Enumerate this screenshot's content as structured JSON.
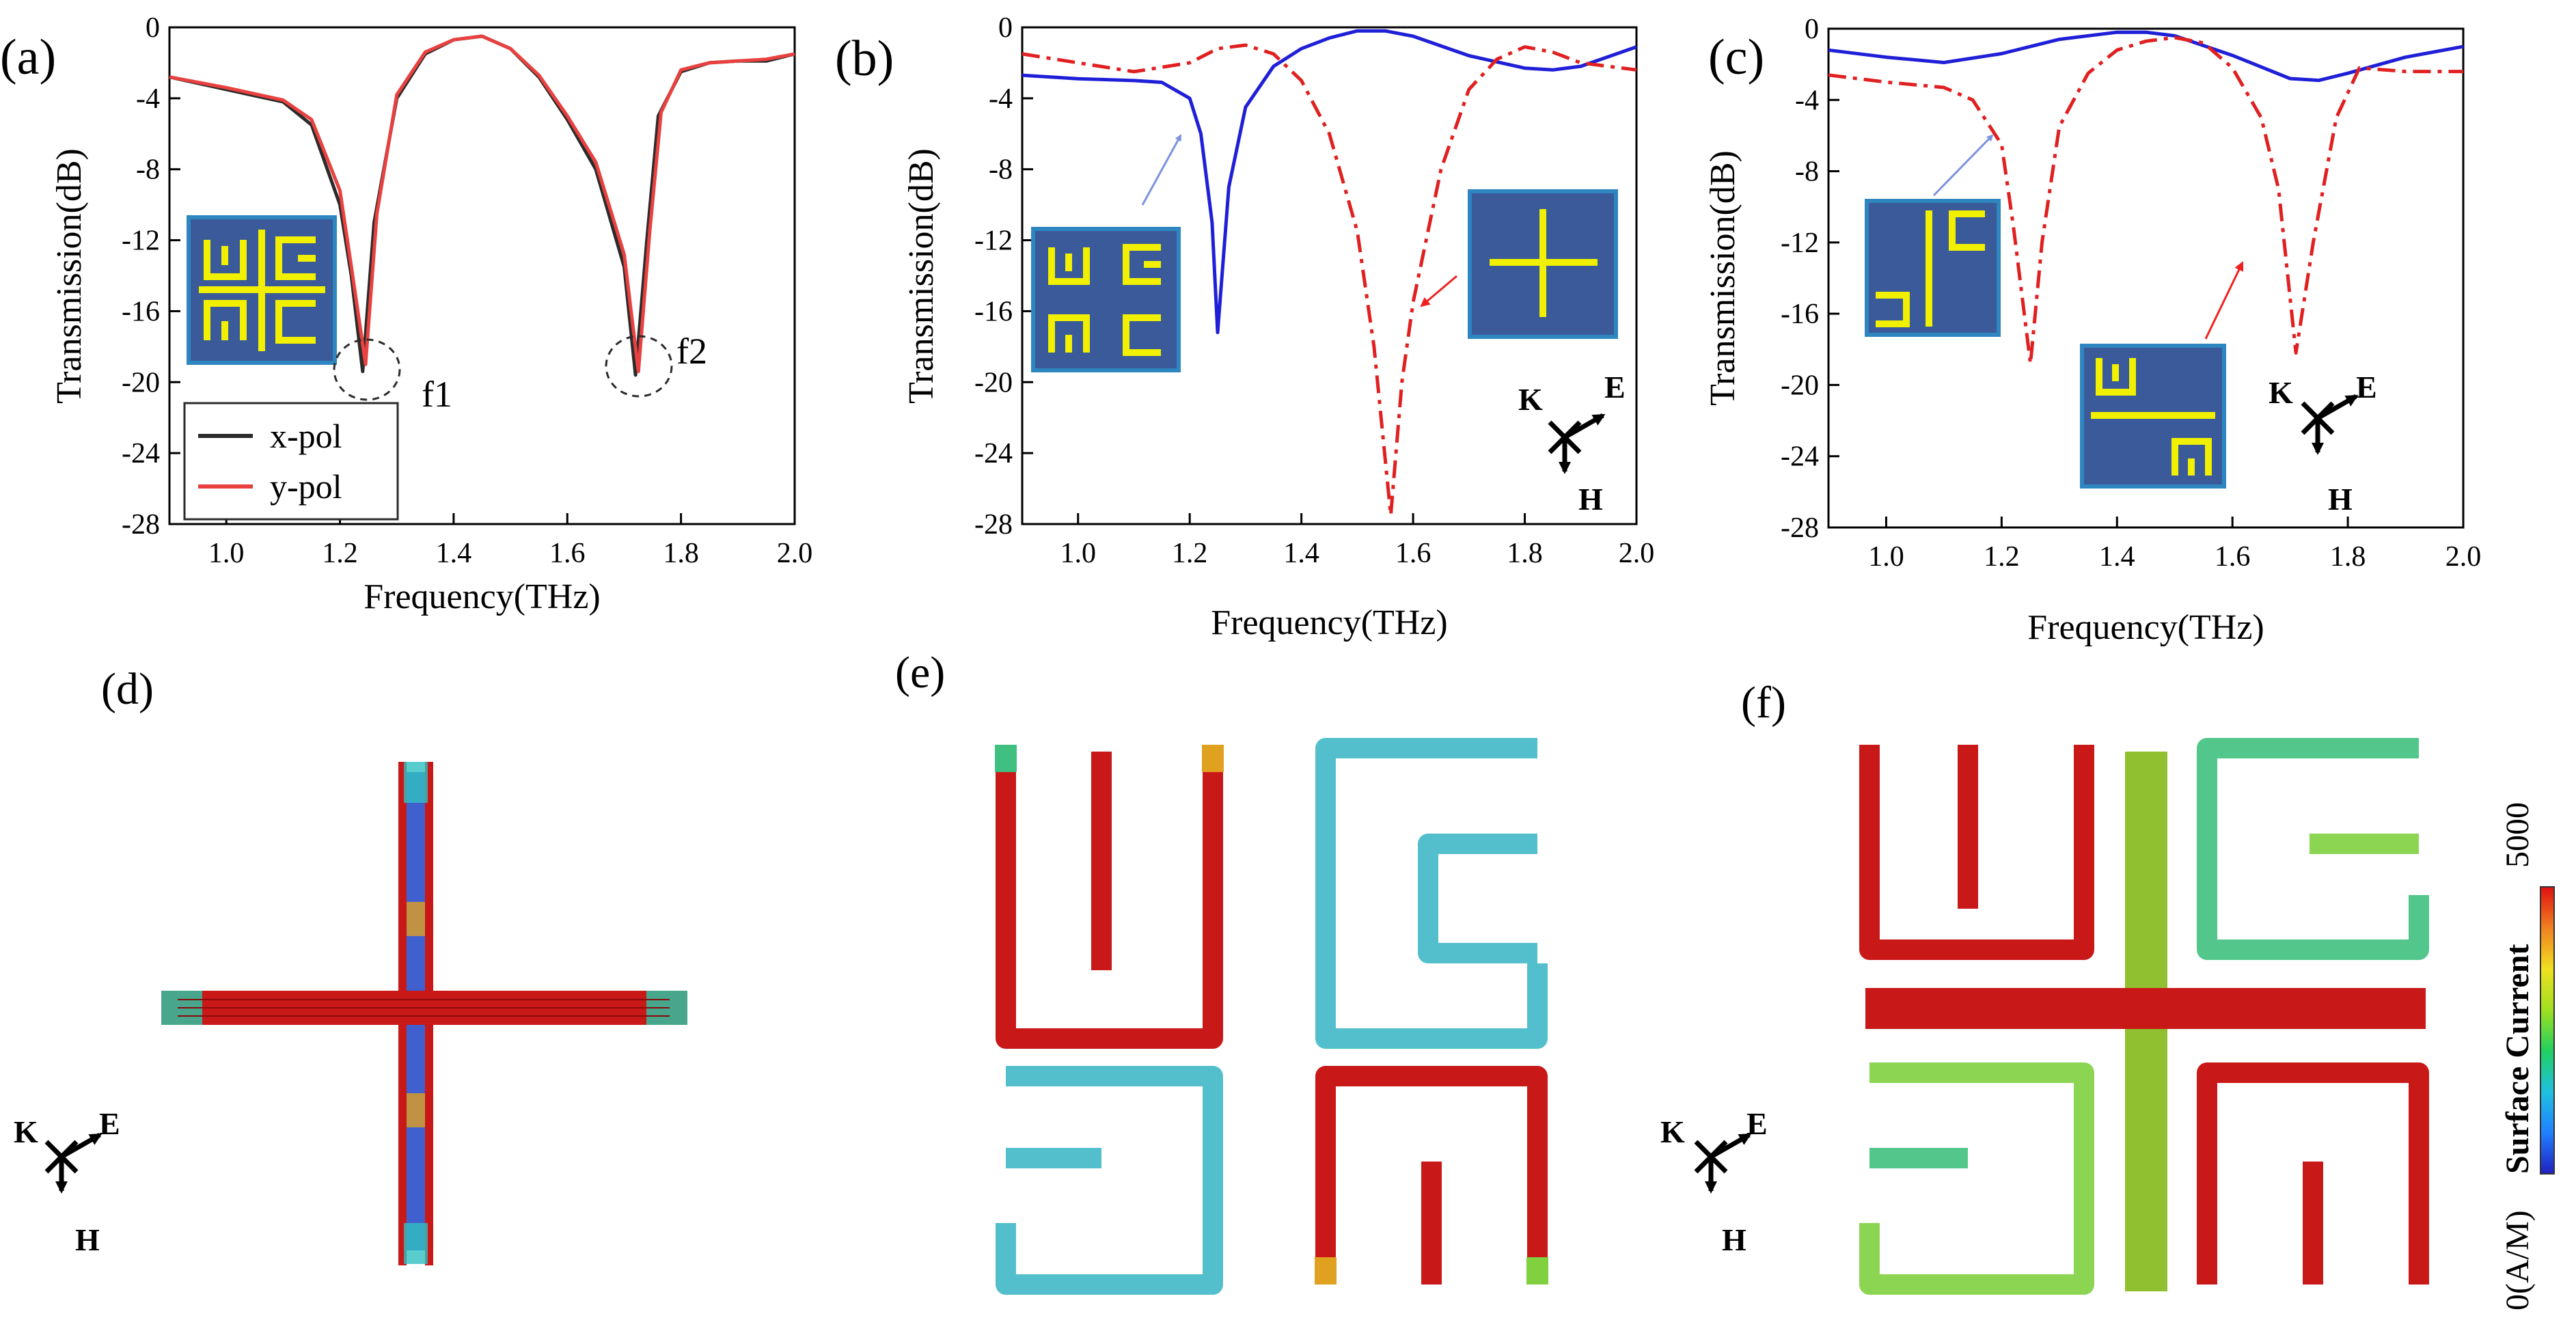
{
  "figure": {
    "colors": {
      "black": "#2b2b2b",
      "red": "#e8413f",
      "blue": "#1f1fd8",
      "reddash": "#e02020",
      "inset_bg": "#3a5a9a",
      "inset_border": "#2e86c1",
      "inset_pattern": "#f0f000",
      "arrow_blue": "#7b92e0",
      "arrow_red": "#f02020"
    },
    "axes_common": {
      "xlabel": "Frequency(THz)",
      "ylabel": "Transmission(dB)"
    },
    "panels_top": [
      {
        "label": "(a)"
      },
      {
        "label": "(b)"
      },
      {
        "label": "(c)"
      }
    ],
    "panel_a_notes": {
      "f1": "f1",
      "f2": "f2"
    },
    "panels_field": [
      {
        "label": "(d)"
      },
      {
        "label": "(e)"
      },
      {
        "label": "(f)"
      }
    ],
    "triad": {
      "k": "K",
      "e": "E",
      "h": "H"
    },
    "colorbar": {
      "title": "Surface Current",
      "max_label": "5000",
      "min_label": "0(A/M)",
      "stops": [
        "#2020c0",
        "#2080ff",
        "#20c0e0",
        "#20d060",
        "#a0e020",
        "#f0e020",
        "#f08020",
        "#e01010"
      ]
    }
  },
  "chart_data": [
    {
      "type": "line",
      "panel": "(a)",
      "xlabel": "Frequency(THz)",
      "ylabel": "Transmission(dB)",
      "xlim": [
        0.9,
        2.0
      ],
      "ylim": [
        -28,
        0
      ],
      "xticks": [
        1.0,
        1.2,
        1.4,
        1.6,
        1.8,
        2.0
      ],
      "yticks": [
        0,
        -4,
        -8,
        -12,
        -16,
        -20,
        -24,
        -28
      ],
      "xticklabels": [
        "1.0",
        "1.2",
        "1.4",
        "1.6",
        "1.8",
        "2.0"
      ],
      "yticklabels": [
        "0",
        "-4",
        "-8",
        "-12",
        "-16",
        "-20",
        "-24",
        "-28"
      ],
      "legend": {
        "position": "bottom-left",
        "entries": [
          "x-pol",
          "y-pol"
        ]
      },
      "annotations": [
        "f1",
        "f2"
      ],
      "series": [
        {
          "name": "x-pol",
          "color": "#2b2b2b",
          "style": "solid",
          "x": [
            0.9,
            1.0,
            1.1,
            1.15,
            1.2,
            1.22,
            1.24,
            1.26,
            1.3,
            1.35,
            1.4,
            1.45,
            1.5,
            1.55,
            1.6,
            1.65,
            1.7,
            1.72,
            1.74,
            1.76,
            1.8,
            1.85,
            1.9,
            1.95,
            2.0
          ],
          "y": [
            -2.8,
            -3.5,
            -4.2,
            -5.5,
            -10.0,
            -14.0,
            -19.4,
            -11.0,
            -4.0,
            -1.5,
            -0.7,
            -0.5,
            -1.2,
            -2.8,
            -5.2,
            -8.0,
            -13.5,
            -19.6,
            -12.0,
            -5.0,
            -2.5,
            -2.0,
            -1.9,
            -1.9,
            -1.5
          ]
        },
        {
          "name": "y-pol",
          "color": "#e8413f",
          "style": "solid",
          "x": [
            0.9,
            1.0,
            1.1,
            1.15,
            1.2,
            1.22,
            1.245,
            1.265,
            1.3,
            1.35,
            1.4,
            1.45,
            1.5,
            1.55,
            1.6,
            1.65,
            1.7,
            1.725,
            1.745,
            1.765,
            1.8,
            1.85,
            1.9,
            1.95,
            2.0
          ],
          "y": [
            -2.8,
            -3.4,
            -4.1,
            -5.2,
            -9.2,
            -13.5,
            -19.0,
            -10.5,
            -3.8,
            -1.4,
            -0.7,
            -0.5,
            -1.2,
            -2.7,
            -5.0,
            -7.6,
            -12.8,
            -19.4,
            -11.5,
            -4.8,
            -2.4,
            -2.0,
            -1.9,
            -1.8,
            -1.5
          ]
        }
      ]
    },
    {
      "type": "line",
      "panel": "(b)",
      "xlabel": "Frequency(THz)",
      "ylabel": "Transmission(dB)",
      "xlim": [
        0.9,
        2.0
      ],
      "ylim": [
        -28,
        0
      ],
      "xticks": [
        1.0,
        1.2,
        1.4,
        1.6,
        1.8,
        2.0
      ],
      "yticks": [
        0,
        -4,
        -8,
        -12,
        -16,
        -20,
        -24,
        -28
      ],
      "xticklabels": [
        "1.0",
        "1.2",
        "1.4",
        "1.6",
        "1.8",
        "2.0"
      ],
      "yticklabels": [
        "0",
        "-4",
        "-8",
        "-12",
        "-16",
        "-20",
        "-24",
        "-28"
      ],
      "series": [
        {
          "name": "split rings",
          "color": "#1f1fd8",
          "style": "solid",
          "x": [
            0.9,
            1.0,
            1.1,
            1.15,
            1.2,
            1.22,
            1.24,
            1.25,
            1.27,
            1.3,
            1.35,
            1.4,
            1.45,
            1.5,
            1.55,
            1.6,
            1.7,
            1.8,
            1.85,
            1.9,
            2.0
          ],
          "y": [
            -2.7,
            -2.9,
            -3.0,
            -3.1,
            -4.0,
            -6.0,
            -11.0,
            -17.2,
            -9.0,
            -4.5,
            -2.2,
            -1.2,
            -0.6,
            -0.2,
            -0.2,
            -0.5,
            -1.6,
            -2.3,
            -2.4,
            -2.2,
            -1.1
          ]
        },
        {
          "name": "cross",
          "color": "#e02020",
          "style": "dashdot",
          "x": [
            0.9,
            1.0,
            1.1,
            1.2,
            1.25,
            1.3,
            1.35,
            1.4,
            1.45,
            1.5,
            1.53,
            1.56,
            1.58,
            1.6,
            1.65,
            1.7,
            1.75,
            1.8,
            1.85,
            1.9,
            2.0
          ],
          "y": [
            -1.5,
            -2.0,
            -2.5,
            -2.0,
            -1.2,
            -1.0,
            -1.5,
            -3.0,
            -6.0,
            -11.5,
            -18.0,
            -27.5,
            -20.0,
            -15.5,
            -8.0,
            -3.5,
            -1.8,
            -1.1,
            -1.4,
            -2.0,
            -2.4
          ]
        }
      ]
    },
    {
      "type": "line",
      "panel": "(c)",
      "xlabel": "Frequency(THz)",
      "ylabel": "Transmission(dB)",
      "xlim": [
        0.9,
        2.0
      ],
      "ylim": [
        -28,
        0
      ],
      "xticks": [
        1.0,
        1.2,
        1.4,
        1.6,
        1.8,
        2.0
      ],
      "yticks": [
        0,
        -4,
        -8,
        -12,
        -16,
        -20,
        -24,
        -28
      ],
      "xticklabels": [
        "1.0",
        "1.2",
        "1.4",
        "1.6",
        "1.8",
        "2.0"
      ],
      "yticklabels": [
        "0",
        "-4",
        "-8",
        "-12",
        "-16",
        "-20",
        "-24",
        "-28"
      ],
      "series": [
        {
          "name": "bar + ring",
          "color": "#1f1fd8",
          "style": "solid",
          "x": [
            0.9,
            1.0,
            1.1,
            1.2,
            1.3,
            1.4,
            1.45,
            1.5,
            1.6,
            1.7,
            1.75,
            1.8,
            1.9,
            2.0
          ],
          "y": [
            -1.2,
            -1.6,
            -1.9,
            -1.4,
            -0.6,
            -0.2,
            -0.2,
            -0.4,
            -1.5,
            -2.8,
            -2.9,
            -2.5,
            -1.6,
            -1.0
          ]
        },
        {
          "name": "rings + bar",
          "color": "#e02020",
          "style": "dashdot",
          "x": [
            0.9,
            1.0,
            1.1,
            1.15,
            1.2,
            1.22,
            1.25,
            1.27,
            1.3,
            1.35,
            1.4,
            1.45,
            1.5,
            1.55,
            1.6,
            1.65,
            1.68,
            1.71,
            1.74,
            1.78,
            1.82,
            1.9,
            2.0
          ],
          "y": [
            -2.6,
            -3.0,
            -3.3,
            -4.0,
            -6.5,
            -11.0,
            -18.8,
            -12.0,
            -5.5,
            -2.5,
            -1.2,
            -0.7,
            -0.5,
            -0.8,
            -2.2,
            -5.0,
            -9.0,
            -18.2,
            -12.0,
            -5.0,
            -2.2,
            -2.4,
            -2.4
          ]
        }
      ]
    }
  ]
}
